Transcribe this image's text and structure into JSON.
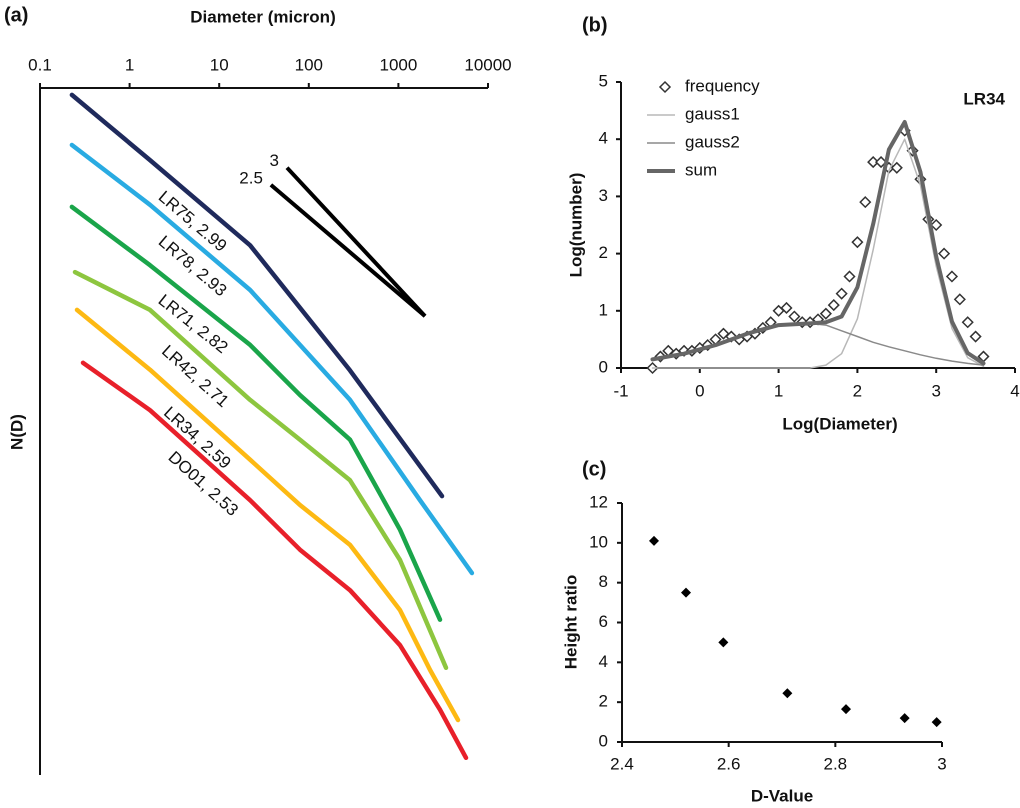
{
  "chart_data": [
    {
      "type": "line",
      "title": "(a)",
      "x_label": "Diameter (micron)",
      "y_label": "N(D)",
      "xlog": true,
      "xlim": [
        0.1,
        10000
      ],
      "xticks": [
        0.1,
        1,
        10,
        100,
        1000,
        10000
      ],
      "ylim": [
        0,
        100
      ],
      "grid": false,
      "series": [
        {
          "name": "LR75, 2.99",
          "color": "#1f2a5c",
          "x": [
            0.227,
            1.69,
            22.1,
            288,
            3070
          ],
          "y": [
            99.0,
            89.5,
            77.1,
            58.9,
            40.6
          ]
        },
        {
          "name": "LR78, 2.93",
          "color": "#29abe2",
          "x": [
            0.227,
            1.69,
            22.1,
            288,
            1742,
            6620
          ],
          "y": [
            91.7,
            83.0,
            70.6,
            54.6,
            40.0,
            29.4
          ]
        },
        {
          "name": "LR71, 2.82",
          "color": "#1aa54a",
          "x": [
            0.227,
            1.69,
            22.1,
            79.8,
            288,
            1042,
            2912
          ],
          "y": [
            82.7,
            74.2,
            62.6,
            55.3,
            48.8,
            35.7,
            22.6
          ]
        },
        {
          "name": "LR42, 2.71",
          "color": "#8dc63f",
          "x": [
            0.246,
            1.69,
            22.1,
            79.8,
            288,
            1042,
            3400
          ],
          "y": [
            73.2,
            67.7,
            54.6,
            48.8,
            42.9,
            31.3,
            15.6
          ]
        },
        {
          "name": "LR34, 2.59",
          "color": "#fdb913",
          "x": [
            0.259,
            1.69,
            22.1,
            79.8,
            288,
            1042,
            2253,
            4624
          ],
          "y": [
            67.7,
            59.0,
            45.9,
            39.3,
            33.5,
            24.0,
            15.3,
            8.0
          ]
        },
        {
          "name": "DO01, 2.53",
          "color": "#e8202a",
          "x": [
            0.302,
            1.69,
            22.1,
            79.8,
            288,
            1042,
            2912,
            5680
          ],
          "y": [
            60.0,
            53.1,
            40.0,
            32.8,
            26.9,
            18.9,
            9.5,
            2.5
          ]
        }
      ],
      "slope_lines": [
        {
          "name": "3",
          "color": "#000000",
          "x": [
            57.1,
            1982
          ],
          "y": [
            88.4,
            66.8
          ]
        },
        {
          "name": "2.5",
          "color": "#000000",
          "x": [
            37.8,
            1982
          ],
          "y": [
            85.9,
            66.8
          ]
        }
      ]
    },
    {
      "type": "line",
      "title": "(b)",
      "x_label": "Log(Diameter)",
      "y_label": "Log(number)",
      "annotation": "LR34",
      "xlim": [
        -1,
        4
      ],
      "xticks": [
        -1,
        0,
        1,
        2,
        3,
        4
      ],
      "ylim": [
        0,
        5
      ],
      "yticks": [
        0,
        1,
        2,
        3,
        4,
        5
      ],
      "grid": false,
      "legend": "upper left",
      "series": [
        {
          "name": "frequency",
          "color": "#333333",
          "mode": "markers",
          "x": [
            -0.6,
            -0.5,
            -0.4,
            -0.3,
            -0.2,
            -0.1,
            0,
            0.1,
            0.2,
            0.3,
            0.4,
            0.5,
            0.6,
            0.7,
            0.8,
            0.9,
            1.0,
            1.1,
            1.2,
            1.3,
            1.4,
            1.5,
            1.6,
            1.7,
            1.8,
            1.9,
            2.0,
            2.1,
            2.2,
            2.3,
            2.4,
            2.5,
            2.6,
            2.7,
            2.8,
            2.9,
            3.0,
            3.1,
            3.2,
            3.3,
            3.4,
            3.5,
            3.6
          ],
          "y": [
            0,
            0.2,
            0.3,
            0.25,
            0.3,
            0.3,
            0.35,
            0.4,
            0.5,
            0.6,
            0.55,
            0.5,
            0.55,
            0.6,
            0.7,
            0.8,
            1.0,
            1.05,
            0.9,
            0.8,
            0.8,
            0.85,
            0.95,
            1.1,
            1.3,
            1.6,
            2.2,
            2.9,
            3.6,
            3.6,
            3.5,
            3.5,
            4.15,
            3.8,
            3.3,
            2.6,
            2.5,
            2.0,
            1.6,
            1.2,
            0.8,
            0.55,
            0.2
          ]
        },
        {
          "name": "gauss1",
          "color": "#b8b8b8",
          "mode": "line",
          "line_width": 1.5,
          "x": [
            -0.6,
            -0.2,
            0.2,
            0.6,
            1.0,
            1.4,
            1.6,
            1.8,
            2.0,
            2.2,
            2.4,
            2.6,
            2.8,
            3.0,
            3.2,
            3.4,
            3.6
          ],
          "y": [
            0,
            0,
            0,
            0,
            0,
            0,
            0.05,
            0.25,
            0.86,
            2.07,
            3.45,
            4.0,
            3.2,
            1.78,
            0.69,
            0.18,
            0.03
          ]
        },
        {
          "name": "gauss2",
          "color": "#8a8a8a",
          "mode": "line",
          "line_width": 1.5,
          "x": [
            -0.6,
            -0.2,
            0.2,
            0.6,
            1.0,
            1.4,
            1.6,
            1.8,
            2.0,
            2.2,
            2.4,
            2.6,
            2.8,
            3.0,
            3.2,
            3.4,
            3.6
          ],
          "y": [
            0.15,
            0.25,
            0.4,
            0.6,
            0.75,
            0.78,
            0.75,
            0.65,
            0.55,
            0.45,
            0.37,
            0.3,
            0.23,
            0.17,
            0.12,
            0.08,
            0.05
          ]
        },
        {
          "name": "sum",
          "color": "#666666",
          "mode": "line",
          "line_width": 4,
          "x": [
            -0.6,
            -0.2,
            0.2,
            0.6,
            1.0,
            1.4,
            1.6,
            1.8,
            2.0,
            2.2,
            2.4,
            2.6,
            2.8,
            3.0,
            3.2,
            3.4,
            3.6
          ],
          "y": [
            0.15,
            0.25,
            0.4,
            0.6,
            0.75,
            0.78,
            0.8,
            0.9,
            1.41,
            2.52,
            3.82,
            4.3,
            3.43,
            1.95,
            0.81,
            0.26,
            0.08
          ]
        }
      ]
    },
    {
      "type": "scatter",
      "title": "(c)",
      "x_label": "D-Value",
      "y_label": "Height ratio",
      "xlim": [
        2.4,
        3
      ],
      "xticks": [
        2.4,
        2.6,
        2.8,
        3
      ],
      "ylim": [
        0,
        12
      ],
      "yticks": [
        0,
        2,
        4,
        6,
        8,
        10,
        12
      ],
      "grid": false,
      "color": "#000000",
      "x": [
        2.46,
        2.52,
        2.59,
        2.71,
        2.82,
        2.93,
        2.99
      ],
      "y": [
        10.1,
        7.5,
        5.0,
        2.45,
        1.65,
        1.2,
        1.0
      ]
    }
  ]
}
